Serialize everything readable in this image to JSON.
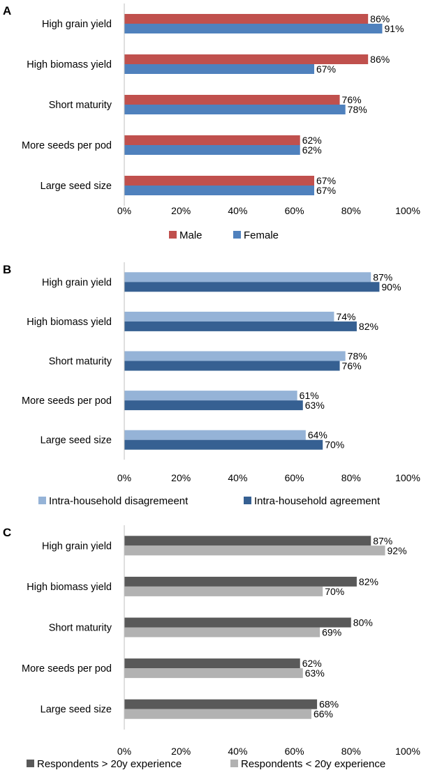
{
  "chart_data": [
    {
      "panel_label": "A",
      "type": "bar",
      "orientation": "horizontal",
      "categories": [
        "High grain yield",
        "High biomass yield",
        "Short maturity",
        "More seeds per pod",
        "Large seed size"
      ],
      "series": [
        {
          "name": "Male",
          "color": "#c0504d",
          "values": [
            86,
            86,
            76,
            62,
            67
          ]
        },
        {
          "name": "Female",
          "color": "#4f81bd",
          "values": [
            91,
            67,
            78,
            62,
            67
          ]
        }
      ],
      "value_suffix": "%",
      "xlim": [
        0,
        100
      ],
      "xticks": [
        0,
        20,
        40,
        60,
        80,
        100
      ],
      "xtick_labels": [
        "0%",
        "20%",
        "40%",
        "60%",
        "80%",
        "100%"
      ],
      "legend_position": "bottom"
    },
    {
      "panel_label": "B",
      "type": "bar",
      "orientation": "horizontal",
      "categories": [
        "High grain yield",
        "High biomass yield",
        "Short maturity",
        "More seeds per pod",
        "Large seed size"
      ],
      "series": [
        {
          "name": "Intra-household disagremeent",
          "color": "#95b3d7",
          "values": [
            87,
            74,
            78,
            61,
            64
          ]
        },
        {
          "name": "Intra-household agreement",
          "color": "#366092",
          "values": [
            90,
            82,
            76,
            63,
            70
          ]
        }
      ],
      "value_suffix": "%",
      "xlim": [
        0,
        100
      ],
      "xticks": [
        0,
        20,
        40,
        60,
        80,
        100
      ],
      "xtick_labels": [
        "0%",
        "20%",
        "40%",
        "60%",
        "80%",
        "100%"
      ],
      "legend_position": "bottom"
    },
    {
      "panel_label": "C",
      "type": "bar",
      "orientation": "horizontal",
      "categories": [
        "High grain yield",
        "High biomass yield",
        "Short maturity",
        "More seeds per pod",
        "Large seed size"
      ],
      "series": [
        {
          "name": "Respondents > 20y experience",
          "color": "#595959",
          "values": [
            87,
            82,
            80,
            62,
            68
          ]
        },
        {
          "name": "Respondents < 20y experience",
          "color": "#b2b2b2",
          "values": [
            92,
            70,
            69,
            63,
            66
          ]
        }
      ],
      "value_suffix": "%",
      "xlim": [
        0,
        100
      ],
      "xticks": [
        0,
        20,
        40,
        60,
        80,
        100
      ],
      "xtick_labels": [
        "0%",
        "20%",
        "40%",
        "60%",
        "80%",
        "100%"
      ],
      "legend_position": "bottom"
    }
  ]
}
